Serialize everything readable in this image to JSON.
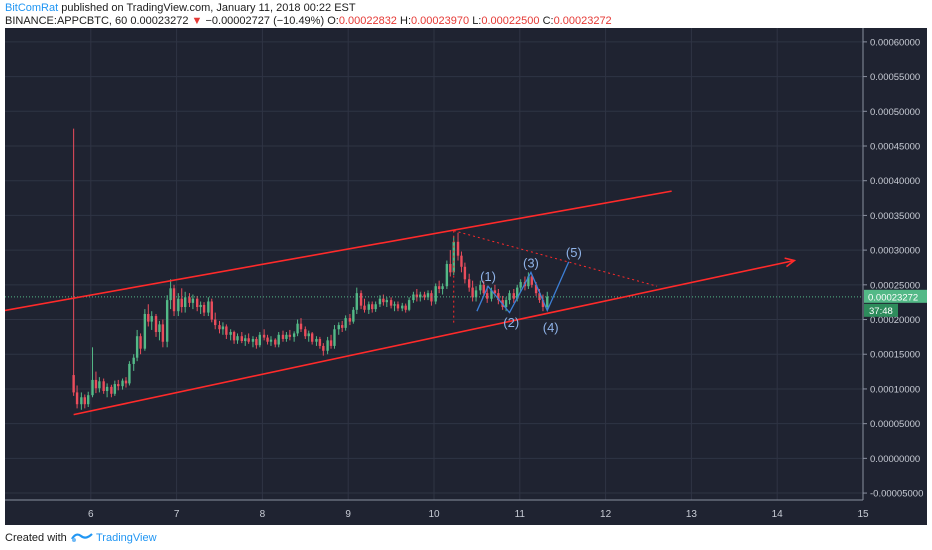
{
  "header": {
    "author": "BitComRat",
    "published": " published on TradingView.com, January 11, 2018 00:22 EST",
    "symbol": "BINANCE:APPCBTC, 60",
    "price": "0.00023272",
    "change_arrow": "▼",
    "change": "−0.00002727 (−10.49%)",
    "o_label": "O:",
    "o": "0.00022832",
    "h_label": "H:",
    "h": "0.00023970",
    "l_label": "L:",
    "l": "0.00022500",
    "c_label": "C:",
    "c": "0.00023272"
  },
  "footer": {
    "created_with": "Created with",
    "brand": "TradingView"
  },
  "colors": {
    "background": "#1f2331",
    "grid": "#2f3444",
    "up": "#53b987",
    "down": "#eb4d5c",
    "trendline": "#ff2a2a",
    "wave": "#3d7fd6",
    "wave_label": "#8fb3e8",
    "price_tag": "#53b987"
  },
  "chart_data": {
    "type": "candlestick",
    "x_ticks": [
      "6",
      "7",
      "8",
      "9",
      "10",
      "11",
      "12",
      "13",
      "14",
      "15"
    ],
    "y_ticks": [
      "0.00060000",
      "0.00055000",
      "0.00050000",
      "0.00045000",
      "0.00040000",
      "0.00035000",
      "0.00030000",
      "0.00025000",
      "0.00020000",
      "0.00015000",
      "0.00010000",
      "0.00005000",
      "0.00000000",
      "-0.00005000"
    ],
    "ylim": [
      -6e-05,
      0.00062
    ],
    "xlim": [
      5.0,
      15.0
    ],
    "last_price": "0.00023272",
    "countdown": "37:48",
    "candles": [
      {
        "t": 5.8,
        "o": 0.00012,
        "h": 0.000475,
        "l": 9e-05,
        "c": 9.5e-05
      },
      {
        "t": 5.84,
        "o": 9.5e-05,
        "h": 0.000105,
        "l": 7.2e-05,
        "c": 7.8e-05
      },
      {
        "t": 5.89,
        "o": 7.8e-05,
        "h": 9.5e-05,
        "l": 7e-05,
        "c": 8.8e-05
      },
      {
        "t": 5.93,
        "o": 8.8e-05,
        "h": 9.2e-05,
        "l": 7.2e-05,
        "c": 7.8e-05
      },
      {
        "t": 5.97,
        "o": 7.8e-05,
        "h": 9.6e-05,
        "l": 7.4e-05,
        "c": 9.1e-05
      },
      {
        "t": 6.02,
        "o": 9.1e-05,
        "h": 0.00016,
        "l": 8.8e-05,
        "c": 0.000113
      },
      {
        "t": 6.06,
        "o": 0.000113,
        "h": 0.000125,
        "l": 9.4e-05,
        "c": 0.000101
      },
      {
        "t": 6.1,
        "o": 0.000101,
        "h": 0.000117,
        "l": 9.5e-05,
        "c": 0.000111
      },
      {
        "t": 6.15,
        "o": 0.000111,
        "h": 0.000115,
        "l": 9.3e-05,
        "c": 9.7e-05
      },
      {
        "t": 6.19,
        "o": 9.7e-05,
        "h": 0.000108,
        "l": 8.8e-05,
        "c": 0.000103
      },
      {
        "t": 6.24,
        "o": 0.000103,
        "h": 0.000106,
        "l": 8.8e-05,
        "c": 9.3e-05
      },
      {
        "t": 6.28,
        "o": 9.3e-05,
        "h": 0.000112,
        "l": 9e-05,
        "c": 0.000107
      },
      {
        "t": 6.32,
        "o": 0.000107,
        "h": 0.000113,
        "l": 9.8e-05,
        "c": 0.000104
      },
      {
        "t": 6.37,
        "o": 0.000104,
        "h": 0.000115,
        "l": 9.9e-05,
        "c": 0.000112
      },
      {
        "t": 6.41,
        "o": 0.000112,
        "h": 0.000117,
        "l": 0.000102,
        "c": 0.000108
      },
      {
        "t": 6.45,
        "o": 0.000108,
        "h": 0.00014,
        "l": 0.000105,
        "c": 0.000136
      },
      {
        "t": 6.5,
        "o": 0.000136,
        "h": 0.00015,
        "l": 0.000126,
        "c": 0.000145
      },
      {
        "t": 6.54,
        "o": 0.000145,
        "h": 0.000185,
        "l": 0.00014,
        "c": 0.000176
      },
      {
        "t": 6.58,
        "o": 0.000176,
        "h": 0.00018,
        "l": 0.00015,
        "c": 0.000158
      },
      {
        "t": 6.63,
        "o": 0.000158,
        "h": 0.000215,
        "l": 0.000155,
        "c": 0.000208
      },
      {
        "t": 6.67,
        "o": 0.000208,
        "h": 0.000222,
        "l": 0.00019,
        "c": 0.000197
      },
      {
        "t": 6.71,
        "o": 0.000197,
        "h": 0.000212,
        "l": 0.000185,
        "c": 0.000205
      },
      {
        "t": 6.76,
        "o": 0.000205,
        "h": 0.000208,
        "l": 0.000175,
        "c": 0.000182
      },
      {
        "t": 6.8,
        "o": 0.000182,
        "h": 0.000198,
        "l": 0.00017,
        "c": 0.000193
      },
      {
        "t": 6.84,
        "o": 0.000193,
        "h": 0.0002,
        "l": 0.00016,
        "c": 0.000168
      },
      {
        "t": 6.89,
        "o": 0.000168,
        "h": 0.000235,
        "l": 0.00016,
        "c": 0.000228
      },
      {
        "t": 6.93,
        "o": 0.000228,
        "h": 0.000258,
        "l": 0.000215,
        "c": 0.000245
      },
      {
        "t": 6.97,
        "o": 0.000245,
        "h": 0.00025,
        "l": 0.000205,
        "c": 0.000212
      },
      {
        "t": 7.02,
        "o": 0.000212,
        "h": 0.000238,
        "l": 0.000205,
        "c": 0.00023
      },
      {
        "t": 7.06,
        "o": 0.00023,
        "h": 0.000245,
        "l": 0.00021,
        "c": 0.000218
      },
      {
        "t": 7.1,
        "o": 0.000218,
        "h": 0.00024,
        "l": 0.00021,
        "c": 0.000232
      },
      {
        "t": 7.15,
        "o": 0.000232,
        "h": 0.000238,
        "l": 0.000218,
        "c": 0.000224
      },
      {
        "t": 7.19,
        "o": 0.000224,
        "h": 0.000236,
        "l": 0.000215,
        "c": 0.00023
      },
      {
        "t": 7.24,
        "o": 0.00023,
        "h": 0.000234,
        "l": 0.000212,
        "c": 0.000218
      },
      {
        "t": 7.28,
        "o": 0.000218,
        "h": 0.000226,
        "l": 0.000208,
        "c": 0.000221
      },
      {
        "t": 7.32,
        "o": 0.000221,
        "h": 0.000225,
        "l": 0.000205,
        "c": 0.00021
      },
      {
        "t": 7.37,
        "o": 0.00021,
        "h": 0.000232,
        "l": 0.000205,
        "c": 0.000226
      },
      {
        "t": 7.41,
        "o": 0.000226,
        "h": 0.00023,
        "l": 0.000196,
        "c": 0.0002
      },
      {
        "t": 7.45,
        "o": 0.0002,
        "h": 0.00021,
        "l": 0.000186,
        "c": 0.000192
      },
      {
        "t": 7.5,
        "o": 0.000192,
        "h": 0.000198,
        "l": 0.00018,
        "c": 0.000186
      },
      {
        "t": 7.54,
        "o": 0.000186,
        "h": 0.000196,
        "l": 0.000178,
        "c": 0.00019
      },
      {
        "t": 7.58,
        "o": 0.00019,
        "h": 0.000193,
        "l": 0.000172,
        "c": 0.000178
      },
      {
        "t": 7.63,
        "o": 0.000178,
        "h": 0.000186,
        "l": 0.00017,
        "c": 0.000182
      },
      {
        "t": 7.67,
        "o": 0.000182,
        "h": 0.000184,
        "l": 0.000165,
        "c": 0.00017
      },
      {
        "t": 7.71,
        "o": 0.00017,
        "h": 0.00018,
        "l": 0.000165,
        "c": 0.000176
      },
      {
        "t": 7.76,
        "o": 0.000176,
        "h": 0.000182,
        "l": 0.000166,
        "c": 0.000169
      },
      {
        "t": 7.8,
        "o": 0.000169,
        "h": 0.000178,
        "l": 0.000162,
        "c": 0.000173
      },
      {
        "t": 7.84,
        "o": 0.000173,
        "h": 0.00018,
        "l": 0.000165,
        "c": 0.000168
      },
      {
        "t": 7.89,
        "o": 0.000168,
        "h": 0.000176,
        "l": 0.00016,
        "c": 0.000172
      },
      {
        "t": 7.93,
        "o": 0.000172,
        "h": 0.000175,
        "l": 0.000158,
        "c": 0.000163
      },
      {
        "t": 7.97,
        "o": 0.000163,
        "h": 0.000182,
        "l": 0.00016,
        "c": 0.000178
      },
      {
        "t": 8.02,
        "o": 0.000178,
        "h": 0.000186,
        "l": 0.00017,
        "c": 0.000174
      },
      {
        "t": 8.06,
        "o": 0.000174,
        "h": 0.000178,
        "l": 0.000164,
        "c": 0.000168
      },
      {
        "t": 8.1,
        "o": 0.000168,
        "h": 0.000176,
        "l": 0.000162,
        "c": 0.000171
      },
      {
        "t": 8.15,
        "o": 0.000171,
        "h": 0.000173,
        "l": 0.00016,
        "c": 0.000164
      },
      {
        "t": 8.19,
        "o": 0.000164,
        "h": 0.000182,
        "l": 0.00016,
        "c": 0.000178
      },
      {
        "t": 8.24,
        "o": 0.000178,
        "h": 0.000184,
        "l": 0.000168,
        "c": 0.000172
      },
      {
        "t": 8.28,
        "o": 0.000172,
        "h": 0.000182,
        "l": 0.000168,
        "c": 0.000178
      },
      {
        "t": 8.32,
        "o": 0.000178,
        "h": 0.000185,
        "l": 0.00017,
        "c": 0.000175
      },
      {
        "t": 8.37,
        "o": 0.000175,
        "h": 0.000183,
        "l": 0.000168,
        "c": 0.00018
      },
      {
        "t": 8.41,
        "o": 0.00018,
        "h": 0.0002,
        "l": 0.000176,
        "c": 0.000194
      },
      {
        "t": 8.45,
        "o": 0.000194,
        "h": 0.000202,
        "l": 0.000182,
        "c": 0.000186
      },
      {
        "t": 8.5,
        "o": 0.000186,
        "h": 0.00019,
        "l": 0.000172,
        "c": 0.000176
      },
      {
        "t": 8.54,
        "o": 0.000176,
        "h": 0.000184,
        "l": 0.000168,
        "c": 0.00018
      },
      {
        "t": 8.58,
        "o": 0.00018,
        "h": 0.000182,
        "l": 0.000164,
        "c": 0.000168
      },
      {
        "t": 8.63,
        "o": 0.000168,
        "h": 0.000176,
        "l": 0.000162,
        "c": 0.000172
      },
      {
        "t": 8.67,
        "o": 0.000172,
        "h": 0.000175,
        "l": 0.000158,
        "c": 0.000162
      },
      {
        "t": 8.71,
        "o": 0.000162,
        "h": 0.000166,
        "l": 0.000148,
        "c": 0.000155
      },
      {
        "t": 8.76,
        "o": 0.000155,
        "h": 0.000175,
        "l": 0.00015,
        "c": 0.00017
      },
      {
        "t": 8.8,
        "o": 0.00017,
        "h": 0.000178,
        "l": 0.000158,
        "c": 0.000162
      },
      {
        "t": 8.84,
        "o": 0.000162,
        "h": 0.000192,
        "l": 0.000158,
        "c": 0.000186
      },
      {
        "t": 8.89,
        "o": 0.000186,
        "h": 0.000196,
        "l": 0.000178,
        "c": 0.000192
      },
      {
        "t": 8.93,
        "o": 0.000192,
        "h": 0.000198,
        "l": 0.000182,
        "c": 0.000188
      },
      {
        "t": 8.97,
        "o": 0.000188,
        "h": 0.000206,
        "l": 0.000184,
        "c": 0.000202
      },
      {
        "t": 9.02,
        "o": 0.000202,
        "h": 0.000208,
        "l": 0.000192,
        "c": 0.000197
      },
      {
        "t": 9.06,
        "o": 0.000197,
        "h": 0.000218,
        "l": 0.000194,
        "c": 0.000214
      },
      {
        "t": 9.1,
        "o": 0.000214,
        "h": 0.000246,
        "l": 0.000208,
        "c": 0.000238
      },
      {
        "t": 9.15,
        "o": 0.000238,
        "h": 0.000242,
        "l": 0.000215,
        "c": 0.00022
      },
      {
        "t": 9.19,
        "o": 0.00022,
        "h": 0.00023,
        "l": 0.00021,
        "c": 0.000214
      },
      {
        "t": 9.24,
        "o": 0.000214,
        "h": 0.000226,
        "l": 0.000208,
        "c": 0.000222
      },
      {
        "t": 9.28,
        "o": 0.000222,
        "h": 0.000226,
        "l": 0.00021,
        "c": 0.000215
      },
      {
        "t": 9.32,
        "o": 0.000215,
        "h": 0.000226,
        "l": 0.000211,
        "c": 0.000222
      },
      {
        "t": 9.37,
        "o": 0.000222,
        "h": 0.000235,
        "l": 0.000218,
        "c": 0.00023
      },
      {
        "t": 9.41,
        "o": 0.00023,
        "h": 0.000236,
        "l": 0.00022,
        "c": 0.000225
      },
      {
        "t": 9.45,
        "o": 0.000225,
        "h": 0.000232,
        "l": 0.000218,
        "c": 0.000228
      },
      {
        "t": 9.5,
        "o": 0.000228,
        "h": 0.000232,
        "l": 0.000216,
        "c": 0.00022
      },
      {
        "t": 9.54,
        "o": 0.00022,
        "h": 0.000226,
        "l": 0.000212,
        "c": 0.000222
      },
      {
        "t": 9.58,
        "o": 0.000222,
        "h": 0.000226,
        "l": 0.000212,
        "c": 0.000216
      },
      {
        "t": 9.63,
        "o": 0.000216,
        "h": 0.000224,
        "l": 0.000212,
        "c": 0.00022
      },
      {
        "t": 9.67,
        "o": 0.00022,
        "h": 0.000223,
        "l": 0.00021,
        "c": 0.000214
      },
      {
        "t": 9.71,
        "o": 0.000214,
        "h": 0.000232,
        "l": 0.000212,
        "c": 0.000228
      },
      {
        "t": 9.76,
        "o": 0.000228,
        "h": 0.00024,
        "l": 0.000224,
        "c": 0.000236
      },
      {
        "t": 9.8,
        "o": 0.000236,
        "h": 0.000244,
        "l": 0.000226,
        "c": 0.000232
      },
      {
        "t": 9.84,
        "o": 0.000232,
        "h": 0.00024,
        "l": 0.000226,
        "c": 0.000236
      },
      {
        "t": 9.89,
        "o": 0.000236,
        "h": 0.00024,
        "l": 0.000228,
        "c": 0.000232
      },
      {
        "t": 9.93,
        "o": 0.000232,
        "h": 0.000242,
        "l": 0.000228,
        "c": 0.000238
      },
      {
        "t": 9.97,
        "o": 0.000238,
        "h": 0.000242,
        "l": 0.00022,
        "c": 0.000226
      },
      {
        "t": 10.02,
        "o": 0.000226,
        "h": 0.000252,
        "l": 0.000222,
        "c": 0.000248
      },
      {
        "t": 10.06,
        "o": 0.000248,
        "h": 0.000256,
        "l": 0.000238,
        "c": 0.000244
      },
      {
        "t": 10.1,
        "o": 0.000244,
        "h": 0.000252,
        "l": 0.000236,
        "c": 0.000248
      },
      {
        "t": 10.15,
        "o": 0.000248,
        "h": 0.000285,
        "l": 0.000244,
        "c": 0.00028
      },
      {
        "t": 10.19,
        "o": 0.00028,
        "h": 0.0003,
        "l": 0.000262,
        "c": 0.000268
      },
      {
        "t": 10.23,
        "o": 0.000268,
        "h": 0.00032,
        "l": 0.000264,
        "c": 0.000312
      },
      {
        "t": 10.28,
        "o": 0.000312,
        "h": 0.000325,
        "l": 0.000285,
        "c": 0.000292
      },
      {
        "t": 10.32,
        "o": 0.000292,
        "h": 0.000298,
        "l": 0.000268,
        "c": 0.000276
      },
      {
        "t": 10.36,
        "o": 0.000276,
        "h": 0.000282,
        "l": 0.000252,
        "c": 0.000258
      },
      {
        "t": 10.41,
        "o": 0.000258,
        "h": 0.000266,
        "l": 0.00024,
        "c": 0.000246
      },
      {
        "t": 10.45,
        "o": 0.000246,
        "h": 0.000256,
        "l": 0.000226,
        "c": 0.000232
      },
      {
        "t": 10.49,
        "o": 0.000232,
        "h": 0.000248,
        "l": 0.000226,
        "c": 0.000242
      },
      {
        "t": 10.54,
        "o": 0.000242,
        "h": 0.000256,
        "l": 0.000236,
        "c": 0.00025
      },
      {
        "t": 10.58,
        "o": 0.00025,
        "h": 0.000256,
        "l": 0.000234,
        "c": 0.000238
      },
      {
        "t": 10.62,
        "o": 0.000238,
        "h": 0.000248,
        "l": 0.000224,
        "c": 0.00023
      },
      {
        "t": 10.67,
        "o": 0.00023,
        "h": 0.000246,
        "l": 0.000226,
        "c": 0.000242
      },
      {
        "t": 10.71,
        "o": 0.000242,
        "h": 0.00025,
        "l": 0.000234,
        "c": 0.000238
      },
      {
        "t": 10.75,
        "o": 0.000238,
        "h": 0.000244,
        "l": 0.000222,
        "c": 0.000228
      },
      {
        "t": 10.8,
        "o": 0.000228,
        "h": 0.000234,
        "l": 0.000214,
        "c": 0.000218
      },
      {
        "t": 10.84,
        "o": 0.000218,
        "h": 0.000232,
        "l": 0.000212,
        "c": 0.000228
      },
      {
        "t": 10.88,
        "o": 0.000228,
        "h": 0.000242,
        "l": 0.000222,
        "c": 0.000238
      },
      {
        "t": 10.93,
        "o": 0.000238,
        "h": 0.000244,
        "l": 0.000224,
        "c": 0.00023
      },
      {
        "t": 10.97,
        "o": 0.00023,
        "h": 0.00025,
        "l": 0.000226,
        "c": 0.000246
      },
      {
        "t": 11.01,
        "o": 0.000246,
        "h": 0.000258,
        "l": 0.00024,
        "c": 0.000254
      },
      {
        "t": 11.06,
        "o": 0.000254,
        "h": 0.000262,
        "l": 0.000242,
        "c": 0.000248
      },
      {
        "t": 11.1,
        "o": 0.000248,
        "h": 0.000268,
        "l": 0.000244,
        "c": 0.000262
      },
      {
        "t": 11.14,
        "o": 0.000262,
        "h": 0.000266,
        "l": 0.000246,
        "c": 0.00025
      },
      {
        "t": 11.19,
        "o": 0.00025,
        "h": 0.000254,
        "l": 0.000234,
        "c": 0.000238
      },
      {
        "t": 11.23,
        "o": 0.000238,
        "h": 0.000244,
        "l": 0.000224,
        "c": 0.000228
      },
      {
        "t": 11.27,
        "o": 0.000228,
        "h": 0.000236,
        "l": 0.000212,
        "c": 0.000218
      },
      {
        "t": 11.32,
        "o": 0.000218,
        "h": 0.00024,
        "l": 0.000214,
        "c": 0.000233
      }
    ],
    "annotations": [
      {
        "type": "line",
        "style": "solid",
        "color": "red",
        "from": [
          4.95,
          0.000212
        ],
        "to": [
          12.77,
          0.000385
        ]
      },
      {
        "type": "line",
        "style": "solid",
        "color": "red",
        "from": [
          5.8,
          6.3e-05
        ],
        "to": [
          14.2,
          0.000285
        ]
      },
      {
        "type": "line",
        "style": "dotted",
        "color": "red",
        "from": [
          10.23,
          0.000328
        ],
        "to": [
          12.6,
          0.000248
        ]
      },
      {
        "type": "line",
        "style": "dotted",
        "color": "red",
        "from": [
          10.23,
          0.000328
        ],
        "to": [
          10.23,
          0.000192
        ]
      },
      {
        "type": "wave",
        "points": [
          [
            10.5,
            0.000212
          ],
          [
            10.63,
            0.000248
          ],
          [
            10.88,
            0.00021
          ],
          [
            11.13,
            0.000268
          ],
          [
            11.32,
            0.000213
          ],
          [
            11.57,
            0.000283
          ]
        ]
      }
    ],
    "wave_labels": [
      {
        "text": "(1)",
        "x": 10.63,
        "y": 0.000261
      },
      {
        "text": "(2)",
        "x": 10.9,
        "y": 0.000195
      },
      {
        "text": "(3)",
        "x": 11.13,
        "y": 0.000281
      },
      {
        "text": "(4)",
        "x": 11.36,
        "y": 0.000188
      },
      {
        "text": "(5)",
        "x": 11.63,
        "y": 0.000296
      }
    ]
  }
}
